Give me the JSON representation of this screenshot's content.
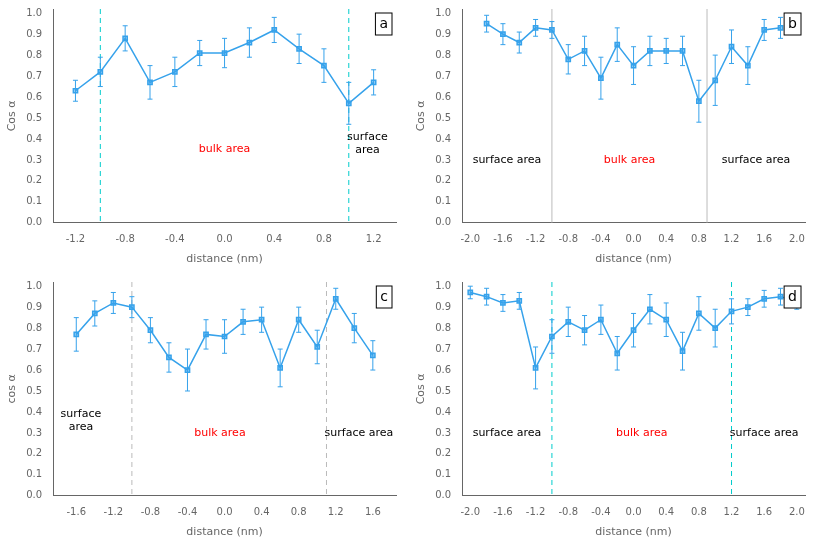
{
  "chart_data": [
    {
      "type": "line",
      "title": "a",
      "xlabel": "distance (nm)",
      "ylabel": "Cos α",
      "grid": false,
      "x": [
        -1.2,
        -1.0,
        -0.8,
        -0.6,
        -0.4,
        -0.2,
        0.0,
        0.2,
        0.4,
        0.6,
        0.8,
        1.0,
        1.2
      ],
      "series": [
        {
          "values": [
            0.63,
            0.72,
            0.88,
            0.67,
            0.72,
            0.81,
            0.81,
            0.86,
            0.92,
            0.83,
            0.75,
            0.57,
            0.67
          ],
          "errors": [
            0.05,
            0.07,
            0.06,
            0.08,
            0.07,
            0.06,
            0.07,
            0.07,
            0.06,
            0.07,
            0.08,
            0.1,
            0.06
          ],
          "marker": "square",
          "line_style": "solid"
        }
      ],
      "vlines": [
        {
          "x": -1.0,
          "color": "#00CCCC",
          "line_style": "dashed"
        },
        {
          "x": 1.0,
          "color": "#00CCCC",
          "line_style": "dashed"
        }
      ],
      "xlim": [
        -1.38,
        1.38
      ],
      "ylim": [
        0.0,
        1.02
      ],
      "xticks": [
        -1.2,
        -0.8,
        -0.4,
        {
          "value": 0.0,
          "label": "0.0"
        },
        0.4,
        0.8,
        1.2
      ],
      "yticks": [
        {
          "value": 0.0,
          "label": "0.0"
        },
        0.1,
        0.2,
        0.3,
        0.4,
        0.5,
        0.6,
        0.7,
        0.8,
        0.9,
        {
          "value": 1.0,
          "label": "1.0"
        }
      ],
      "annotations": [
        {
          "x": 0.0,
          "y": 0.35,
          "text": "bulk area",
          "color": "red"
        },
        {
          "x": 1.15,
          "y": 0.38,
          "text": "surface\narea",
          "color": "black"
        }
      ]
    },
    {
      "type": "line",
      "title": "b",
      "xlabel": "distance (nm)",
      "ylabel": "Cos α",
      "grid": false,
      "x": [
        -1.8,
        -1.6,
        -1.4,
        -1.2,
        -1.0,
        -0.8,
        -0.6,
        -0.4,
        -0.2,
        0.0,
        0.2,
        0.4,
        0.6,
        0.8,
        1.0,
        1.2,
        1.4,
        1.6,
        1.8
      ],
      "series": [
        {
          "values": [
            0.95,
            0.9,
            0.86,
            0.93,
            0.92,
            0.78,
            0.82,
            0.69,
            0.85,
            0.75,
            0.82,
            0.82,
            0.82,
            0.58,
            0.68,
            0.84,
            0.75,
            0.92,
            0.93
          ],
          "errors": [
            0.04,
            0.05,
            0.05,
            0.04,
            0.04,
            0.07,
            0.07,
            0.1,
            0.08,
            0.09,
            0.07,
            0.06,
            0.07,
            0.1,
            0.12,
            0.08,
            0.09,
            0.05,
            0.05
          ],
          "marker": "square",
          "line_style": "solid"
        }
      ],
      "vlines": [
        {
          "x": -1.0,
          "color": "#BBBBBB",
          "line_style": "solid"
        },
        {
          "x": 0.9,
          "color": "#BBBBBB",
          "line_style": "solid"
        }
      ],
      "xlim": [
        -2.1,
        2.1
      ],
      "ylim": [
        0.0,
        1.02
      ],
      "xticks": [
        {
          "value": -2.0,
          "label": "-2.0"
        },
        -1.6,
        -1.2,
        -0.8,
        -0.4,
        {
          "value": 0.0,
          "label": "0.0"
        },
        0.4,
        0.8,
        1.2,
        1.6,
        {
          "value": 2.0,
          "label": "2.0"
        }
      ],
      "yticks": [
        {
          "value": 0.0,
          "label": "0.0"
        },
        0.1,
        0.2,
        0.3,
        0.4,
        0.5,
        0.6,
        0.7,
        0.8,
        0.9,
        {
          "value": 1.0,
          "label": "1.0"
        }
      ],
      "annotations": [
        {
          "x": -1.55,
          "y": 0.3,
          "text": "surface area",
          "color": "black"
        },
        {
          "x": -0.05,
          "y": 0.3,
          "text": "bulk area",
          "color": "red"
        },
        {
          "x": 1.5,
          "y": 0.3,
          "text": "surface area",
          "color": "black"
        }
      ]
    },
    {
      "type": "line",
      "title": "c",
      "xlabel": "distance (nm)",
      "ylabel": "cos α",
      "grid": false,
      "x": [
        -1.6,
        -1.4,
        -1.2,
        -1.0,
        -0.8,
        -0.6,
        -0.4,
        -0.2,
        0.0,
        0.2,
        0.4,
        0.6,
        0.8,
        1.0,
        1.2,
        1.4,
        1.6
      ],
      "series": [
        {
          "values": [
            0.77,
            0.87,
            0.92,
            0.9,
            0.79,
            0.66,
            0.6,
            0.77,
            0.76,
            0.83,
            0.84,
            0.61,
            0.84,
            0.71,
            0.94,
            0.8,
            0.67
          ],
          "errors": [
            0.08,
            0.06,
            0.05,
            0.05,
            0.06,
            0.07,
            0.1,
            0.07,
            0.08,
            0.06,
            0.06,
            0.09,
            0.06,
            0.08,
            0.05,
            0.07,
            0.07
          ],
          "marker": "square",
          "line_style": "solid"
        }
      ],
      "vlines": [
        {
          "x": -1.0,
          "color": "#BBBBBB",
          "line_style": "dashed"
        },
        {
          "x": 1.1,
          "color": "#BBBBBB",
          "line_style": "dashed"
        }
      ],
      "xlim": [
        -1.85,
        1.85
      ],
      "ylim": [
        0.0,
        1.02
      ],
      "xticks": [
        -1.6,
        -1.2,
        -0.8,
        -0.4,
        {
          "value": 0.0,
          "label": "0.0"
        },
        0.4,
        0.8,
        1.2,
        1.6
      ],
      "yticks": [
        {
          "value": 0.0,
          "label": "0.0"
        },
        0.1,
        0.2,
        0.3,
        0.4,
        0.5,
        0.6,
        0.7,
        0.8,
        0.9,
        {
          "value": 1.0,
          "label": "1.0"
        }
      ],
      "annotations": [
        {
          "x": -1.55,
          "y": 0.36,
          "text": "surface\narea",
          "color": "black"
        },
        {
          "x": -0.05,
          "y": 0.3,
          "text": "bulk area",
          "color": "red"
        },
        {
          "x": 1.45,
          "y": 0.3,
          "text": "surface area",
          "color": "black"
        }
      ]
    },
    {
      "type": "line",
      "title": "d",
      "xlabel": "distance (nm)",
      "ylabel": "Cos α",
      "grid": false,
      "x": [
        -2.0,
        -1.8,
        -1.6,
        -1.4,
        -1.2,
        -1.0,
        -0.8,
        -0.6,
        -0.4,
        -0.2,
        0.0,
        0.2,
        0.4,
        0.6,
        0.8,
        1.0,
        1.2,
        1.4,
        1.6,
        1.8,
        2.0
      ],
      "series": [
        {
          "values": [
            0.97,
            0.95,
            0.92,
            0.93,
            0.61,
            0.76,
            0.83,
            0.79,
            0.84,
            0.68,
            0.79,
            0.89,
            0.84,
            0.69,
            0.87,
            0.8,
            0.88,
            0.9,
            0.94,
            0.95,
            0.93
          ],
          "errors": [
            0.03,
            0.04,
            0.04,
            0.04,
            0.1,
            0.08,
            0.07,
            0.07,
            0.07,
            0.08,
            0.08,
            0.07,
            0.08,
            0.09,
            0.08,
            0.09,
            0.06,
            0.04,
            0.04,
            0.04,
            0.04
          ],
          "marker": "square",
          "line_style": "solid"
        }
      ],
      "vlines": [
        {
          "x": -1.0,
          "color": "#00CCCC",
          "line_style": "dashed"
        },
        {
          "x": 1.2,
          "color": "#00CCCC",
          "line_style": "dashed"
        }
      ],
      "xlim": [
        -2.1,
        2.1
      ],
      "ylim": [
        0.0,
        1.02
      ],
      "xticks": [
        {
          "value": -2.0,
          "label": "-2.0"
        },
        -1.6,
        -1.2,
        -0.8,
        -0.4,
        {
          "value": 0.0,
          "label": "0.0"
        },
        0.4,
        0.8,
        1.2,
        1.6,
        {
          "value": 2.0,
          "label": "2.0"
        }
      ],
      "yticks": [
        {
          "value": 0.0,
          "label": "0.0"
        },
        0.1,
        0.2,
        0.3,
        0.4,
        0.5,
        0.6,
        0.7,
        0.8,
        0.9,
        {
          "value": 1.0,
          "label": "1.0"
        }
      ],
      "annotations": [
        {
          "x": -1.55,
          "y": 0.3,
          "text": "surface area",
          "color": "black"
        },
        {
          "x": 0.1,
          "y": 0.3,
          "text": "bulk area",
          "color": "red"
        },
        {
          "x": 1.6,
          "y": 0.3,
          "text": "surface area",
          "color": "black"
        }
      ]
    }
  ]
}
